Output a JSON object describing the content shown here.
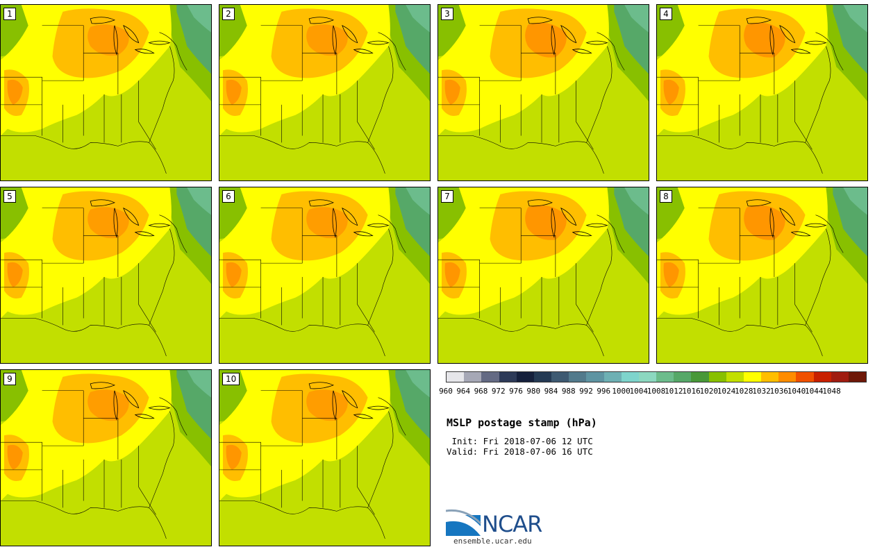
{
  "panels": [
    {
      "label": "1"
    },
    {
      "label": "2"
    },
    {
      "label": "3"
    },
    {
      "label": "4"
    },
    {
      "label": "5"
    },
    {
      "label": "6"
    },
    {
      "label": "7"
    },
    {
      "label": "8"
    },
    {
      "label": "9"
    },
    {
      "label": "10"
    }
  ],
  "colorbar": {
    "labels": [
      "960",
      "964",
      "968",
      "972",
      "976",
      "980",
      "984",
      "988",
      "992",
      "996",
      "1000",
      "1004",
      "1008",
      "1012",
      "1016",
      "1020",
      "1024",
      "1028",
      "1032",
      "1036",
      "1040",
      "1044",
      "1048"
    ],
    "colors": [
      "#e6e6ea",
      "#a6a8b6",
      "#646a84",
      "#2d3a58",
      "#15203c",
      "#243a54",
      "#3e5a72",
      "#527a8c",
      "#5e94a2",
      "#6eb0b4",
      "#7ed4cc",
      "#8cd8c0",
      "#6cbc8c",
      "#56a868",
      "#489838",
      "#88c000",
      "#c2df00",
      "#ffff00",
      "#ffbe00",
      "#ff8c00",
      "#f05000",
      "#c82000",
      "#a01c10",
      "#6e1808"
    ]
  },
  "info": {
    "title": "MSLP postage stamp (hPa)",
    "init": " Init: Fri 2018-07-06 12 UTC",
    "valid": "Valid: Fri 2018-07-06 16 UTC"
  },
  "logo": {
    "text": "NCAR",
    "url": "ensemble.ucar.edu"
  }
}
